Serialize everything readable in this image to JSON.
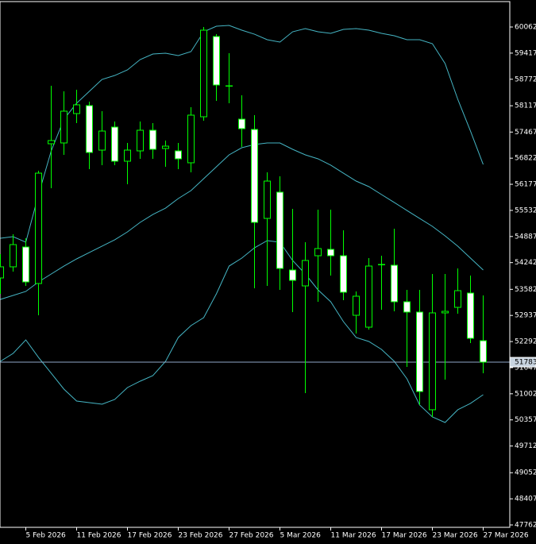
{
  "chart_data": {
    "type": "candlestick",
    "categories": [
      null,
      null,
      "5 Feb 2026",
      null,
      null,
      null,
      "11 Feb 2026",
      null,
      null,
      null,
      "17 Feb 2026",
      null,
      null,
      null,
      "23 Feb 2026",
      null,
      null,
      null,
      "27 Feb 2026",
      null,
      null,
      null,
      "5 Mar 2026",
      null,
      null,
      null,
      "11 Mar 2026",
      null,
      null,
      null,
      "17 Mar 2026",
      null,
      null,
      null,
      "23 Mar 2026",
      null,
      null,
      null,
      "27 Mar 2026"
    ],
    "open": [
      53863,
      54138,
      54628,
      53726,
      57178,
      57198,
      57924,
      58120,
      57021,
      57590,
      56747,
      57002,
      57512,
      57061,
      57002,
      56708,
      57845,
      59827,
      58610,
      57786,
      57531,
      55334,
      55982,
      54059,
      53667,
      54412,
      54569,
      54412,
      52941,
      52647,
      54197,
      54177,
      53275,
      53020,
      50607,
      53000,
      53137,
      53490,
      52313
    ],
    "high": [
      54452,
      54942,
      54844,
      56511,
      58610,
      58473,
      58512,
      58218,
      57983,
      57728,
      57198,
      57728,
      57688,
      57257,
      57198,
      58081,
      60062,
      59885,
      59415,
      58375,
      57885,
      56472,
      56374,
      55570,
      54746,
      55550,
      55550,
      55040,
      53530,
      54353,
      54412,
      55079,
      53569,
      53569,
      53961,
      53961,
      54098,
      53922,
      53431
    ],
    "low": [
      53471,
      54020,
      53667,
      52941,
      56080,
      56904,
      57688,
      56551,
      56649,
      56649,
      56178,
      56806,
      56806,
      56609,
      56551,
      56472,
      57747,
      58238,
      58179,
      57100,
      53608,
      53667,
      53569,
      53020,
      51019,
      53275,
      53922,
      53314,
      52490,
      52588,
      53078,
      53039,
      51666,
      50724,
      50430,
      51352,
      52980,
      52254,
      51509
    ],
    "close": [
      54138,
      54687,
      53765,
      56452,
      57257,
      57983,
      58140,
      56963,
      57492,
      56747,
      57021,
      57512,
      57041,
      57119,
      56806,
      57885,
      59984,
      58630,
      58610,
      57551,
      55236,
      56256,
      54098,
      53804,
      54295,
      54589,
      54412,
      53510,
      53412,
      54157,
      54197,
      53275,
      53020,
      51058,
      53000,
      53039,
      53549,
      52372,
      51783
    ],
    "up_color": "#000000",
    "down_color": "#ffffff",
    "outline_color": "#00ff00",
    "overlays": [
      {
        "type": "line",
        "color": "#45b5c4",
        "values": [
          54844,
          54883,
          54746,
          55923,
          57002,
          57786,
          58179,
          58473,
          58767,
          58865,
          59003,
          59258,
          59395,
          59415,
          59356,
          59454,
          59944,
          60082,
          60101,
          59984,
          59885,
          59748,
          59689,
          59944,
          60023,
          59944,
          59905,
          60003,
          60023,
          59984,
          59905,
          59846,
          59748,
          59748,
          59650,
          59160,
          58277,
          57492,
          56668
        ]
      },
      {
        "type": "line",
        "color": "#45b5c4",
        "values": [
          53333,
          53431,
          53530,
          53765,
          53961,
          54157,
          54334,
          54491,
          54648,
          54805,
          55001,
          55236,
          55432,
          55589,
          55825,
          56021,
          56315,
          56609,
          56904,
          57080,
          57159,
          57198,
          57198,
          57041,
          56904,
          56806,
          56649,
          56452,
          56256,
          56119,
          55923,
          55727,
          55530,
          55334,
          55138,
          54903,
          54648,
          54353,
          54059
        ]
      },
      {
        "type": "line",
        "color": "#45b5c4",
        "values": [
          51803,
          51999,
          52333,
          51901,
          51509,
          51117,
          50822,
          50783,
          50744,
          50862,
          51156,
          51313,
          51450,
          51803,
          52392,
          52686,
          52882,
          53471,
          54157,
          54353,
          54608,
          54785,
          54746,
          54295,
          53961,
          53569,
          53275,
          52784,
          52392,
          52294,
          52098,
          51803,
          51372,
          50724,
          50430,
          50293,
          50607,
          50764,
          50979
        ]
      }
    ],
    "last_price": 51783,
    "last_price_color": "#8fa8c8",
    "ylim": [
      47703,
      60690
    ],
    "yticks": [
      60062,
      59417,
      58772,
      58117,
      57467,
      56822,
      56177,
      55532,
      54887,
      54242,
      53582,
      52937,
      52292,
      51647,
      51002,
      50357,
      49712,
      49052,
      48407,
      47762
    ]
  }
}
